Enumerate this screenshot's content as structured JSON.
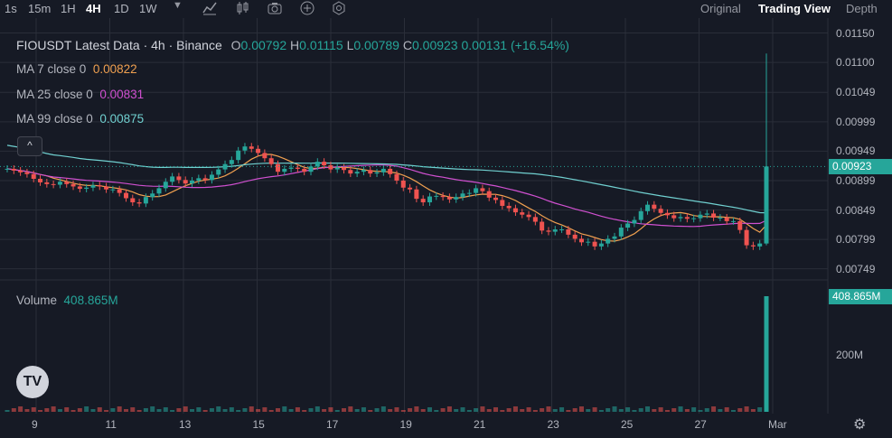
{
  "toolbar": {
    "timeframes": [
      "1s",
      "15m",
      "1H",
      "4H",
      "1D",
      "1W"
    ],
    "active_timeframe": "4H",
    "view_modes": [
      "Original",
      "Trading View",
      "Depth"
    ],
    "active_view": "Trading View",
    "icons": [
      "chevron-down-icon",
      "indicator-chart-icon",
      "candle-type-icon",
      "camera-icon",
      "plus-circle-icon",
      "settings-icon"
    ]
  },
  "legend": {
    "symbol_title": "FIOUSDT Latest Data · 4h · Binance",
    "ohlc": {
      "o_label": "O",
      "o": "0.00792",
      "h_label": "H",
      "h": "0.01115",
      "l_label": "L",
      "l": "0.00789",
      "c_label": "C",
      "c": "0.00923",
      "change": "0.00131 (+16.54%)"
    },
    "ma": [
      {
        "label": "MA 7 close 0",
        "value": "0.00822",
        "color": "#f0a050"
      },
      {
        "label": "MA 25 close 0",
        "value": "0.00831",
        "color": "#d050d0"
      },
      {
        "label": "MA 99 close 0",
        "value": "0.00875",
        "color": "#70d0d0"
      }
    ],
    "collapse": "^"
  },
  "volume": {
    "label": "Volume",
    "value": "408.865M",
    "axis_label": "200M"
  },
  "price_axis": {
    "ticks": [
      "0.01150",
      "0.01100",
      "0.01049",
      "0.00999",
      "0.00949",
      "0.00899",
      "0.00849",
      "0.00799",
      "0.00749"
    ],
    "current_price": "0.00923"
  },
  "time_axis": {
    "ticks": [
      "9",
      "11",
      "13",
      "15",
      "17",
      "19",
      "21",
      "23",
      "25",
      "27",
      "Mar"
    ]
  },
  "colors": {
    "up": "#26a69a",
    "down": "#ef5350",
    "bg": "#161a25",
    "grid": "#2a2e39"
  },
  "chart_data": {
    "type": "candlestick",
    "price_range": [
      0.0073,
      0.0116
    ],
    "series": [
      {
        "name": "FIOUSDT 4h close",
        "values": [
          0.00919,
          0.00916,
          0.00913,
          0.0091,
          0.00902,
          0.00896,
          0.00893,
          0.00892,
          0.00897,
          0.00893,
          0.00889,
          0.00885,
          0.00887,
          0.00891,
          0.00889,
          0.00884,
          0.00884,
          0.00878,
          0.00869,
          0.00862,
          0.0086,
          0.00871,
          0.00877,
          0.00886,
          0.00897,
          0.00906,
          0.009,
          0.00894,
          0.00899,
          0.00903,
          0.009,
          0.00909,
          0.00918,
          0.00927,
          0.00934,
          0.0095,
          0.00957,
          0.00953,
          0.00946,
          0.00937,
          0.00927,
          0.00914,
          0.00919,
          0.00921,
          0.00919,
          0.00914,
          0.00923,
          0.00931,
          0.00925,
          0.00918,
          0.00921,
          0.00917,
          0.00911,
          0.00914,
          0.00917,
          0.00911,
          0.00913,
          0.00919,
          0.0091,
          0.00899,
          0.00887,
          0.00884,
          0.00868,
          0.00862,
          0.00872,
          0.00873,
          0.00871,
          0.00867,
          0.00871,
          0.00877,
          0.00878,
          0.00886,
          0.00881,
          0.0087,
          0.00866,
          0.00856,
          0.00852,
          0.00845,
          0.00841,
          0.00837,
          0.00829,
          0.00814,
          0.00812,
          0.00816,
          0.00816,
          0.00807,
          0.008,
          0.00794,
          0.00795,
          0.00787,
          0.00792,
          0.008,
          0.00804,
          0.00819,
          0.00826,
          0.00832,
          0.00847,
          0.00858,
          0.00851,
          0.00844,
          0.0084,
          0.00835,
          0.00837,
          0.00834,
          0.00835,
          0.00841,
          0.00843,
          0.00836,
          0.00836,
          0.0083,
          0.0083,
          0.00815,
          0.00789,
          0.00787,
          0.00792,
          0.00923
        ]
      }
    ]
  }
}
